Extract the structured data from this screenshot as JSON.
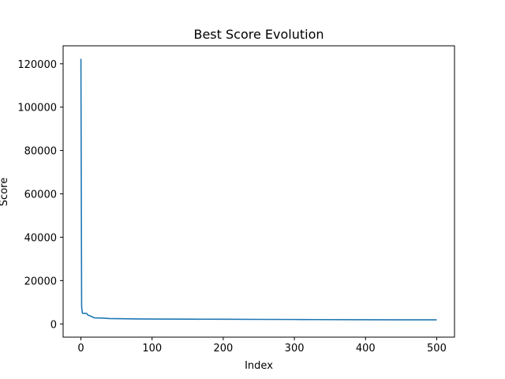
{
  "chart_data": {
    "type": "line",
    "title": "Best Score Evolution",
    "xlabel": "Index",
    "ylabel": "Score",
    "xlim": [
      -25,
      525
    ],
    "ylim": [
      -6100,
      128300
    ],
    "xticks": [
      0,
      100,
      200,
      300,
      400,
      500
    ],
    "yticks": [
      0,
      20000,
      40000,
      60000,
      80000,
      100000,
      120000
    ],
    "grid": false,
    "line_color": "#1f77b4",
    "series": [
      {
        "x": [
          0,
          1,
          2,
          3,
          5,
          8,
          10,
          12,
          14,
          16,
          18,
          20,
          30,
          40,
          60,
          80,
          100,
          150,
          200,
          250,
          300,
          330,
          400,
          450,
          500
        ],
        "values": [
          122300,
          8000,
          5000,
          4900,
          4900,
          4850,
          4000,
          3900,
          3500,
          3300,
          2900,
          2800,
          2700,
          2500,
          2400,
          2300,
          2250,
          2200,
          2150,
          2100,
          2050,
          2000,
          1950,
          1900,
          1900
        ]
      }
    ]
  }
}
